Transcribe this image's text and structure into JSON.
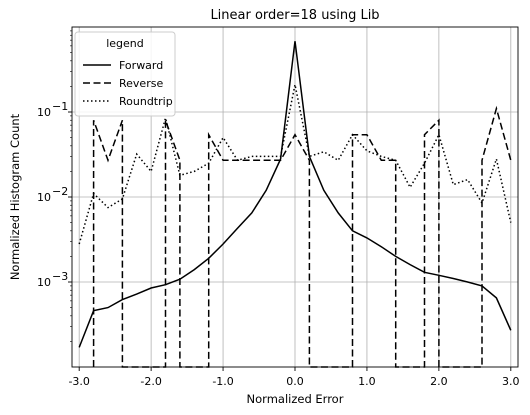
{
  "chart_data": {
    "type": "line",
    "title": "Linear order=18 using Lib",
    "xlabel": "Normalized Error",
    "ylabel": "Normalized Histogram Count",
    "xlim": [
      -3.1,
      3.1
    ],
    "ylim": [
      0.0001,
      1.0
    ],
    "yscale": "log",
    "grid": true,
    "legend": {
      "title": "legend",
      "placement": "top-left"
    },
    "xticks": [
      -3.0,
      -2.0,
      -1.0,
      0.0,
      1.0,
      2.0,
      3.0
    ],
    "xtick_labels": [
      "-3.0",
      "-2.0",
      "-1.0",
      "0.0",
      "1.0",
      "2.0",
      "3.0"
    ],
    "yticks": [
      0.001,
      0.01,
      0.1
    ],
    "ytick_labels": [
      {
        "base": "10",
        "exp": "−3"
      },
      {
        "base": "10",
        "exp": "−2"
      },
      {
        "base": "10",
        "exp": "−1"
      }
    ],
    "series": [
      {
        "name": "Forward",
        "style": "solid",
        "color": "#000000",
        "x": [
          -3.0,
          -2.8,
          -2.6,
          -2.4,
          -2.2,
          -2.0,
          -1.8,
          -1.6,
          -1.4,
          -1.2,
          -1.0,
          -0.8,
          -0.6,
          -0.4,
          -0.2,
          0.0,
          0.2,
          0.4,
          0.6,
          0.8,
          1.0,
          1.2,
          1.4,
          1.6,
          1.8,
          2.0,
          2.2,
          2.4,
          2.6,
          2.8,
          3.0
        ],
        "y": [
          0.00017,
          0.00046,
          0.0005,
          0.00062,
          0.00072,
          0.00085,
          0.00093,
          0.00108,
          0.0014,
          0.0019,
          0.0028,
          0.0043,
          0.0065,
          0.012,
          0.028,
          0.68,
          0.03,
          0.012,
          0.0065,
          0.004,
          0.0033,
          0.0026,
          0.002,
          0.0016,
          0.0013,
          0.0012,
          0.0011,
          0.001,
          0.0009,
          0.00065,
          0.00027
        ]
      },
      {
        "name": "Reverse",
        "style": "dashed",
        "color": "#000000",
        "x": [
          -2.8,
          -2.8,
          -2.6,
          -2.4,
          -2.4,
          -1.8,
          -1.8,
          -1.6,
          -1.6,
          -1.2,
          -1.2,
          -1.0,
          -0.2,
          0.0,
          0.2,
          0.2,
          0.8,
          0.8,
          1.0,
          1.2,
          1.4,
          1.4,
          1.8,
          1.8,
          2.0,
          2.0,
          2.6,
          2.6,
          2.8,
          3.0
        ],
        "y": [
          0.0001,
          0.08,
          0.027,
          0.08,
          0.0001,
          0.0001,
          0.08,
          0.027,
          0.0001,
          0.0001,
          0.054,
          0.027,
          0.027,
          0.054,
          0.027,
          0.0001,
          0.0001,
          0.054,
          0.054,
          0.027,
          0.027,
          0.0001,
          0.0001,
          0.054,
          0.08,
          0.0001,
          0.0001,
          0.027,
          0.11,
          0.027
        ]
      },
      {
        "name": "Roundtrip",
        "style": "dotted",
        "color": "#000000",
        "x": [
          -3.0,
          -2.8,
          -2.6,
          -2.4,
          -2.2,
          -2.0,
          -1.8,
          -1.6,
          -1.4,
          -1.2,
          -1.0,
          -0.8,
          -0.6,
          -0.4,
          -0.2,
          0.0,
          0.2,
          0.4,
          0.6,
          0.8,
          1.0,
          1.2,
          1.4,
          1.6,
          1.8,
          2.0,
          2.2,
          2.4,
          2.6,
          2.8,
          3.0
        ],
        "y": [
          0.0028,
          0.011,
          0.0075,
          0.0095,
          0.032,
          0.02,
          0.085,
          0.018,
          0.02,
          0.025,
          0.05,
          0.027,
          0.03,
          0.03,
          0.03,
          0.21,
          0.03,
          0.034,
          0.027,
          0.054,
          0.035,
          0.03,
          0.027,
          0.013,
          0.025,
          0.054,
          0.014,
          0.016,
          0.0085,
          0.028,
          0.005
        ]
      }
    ]
  }
}
